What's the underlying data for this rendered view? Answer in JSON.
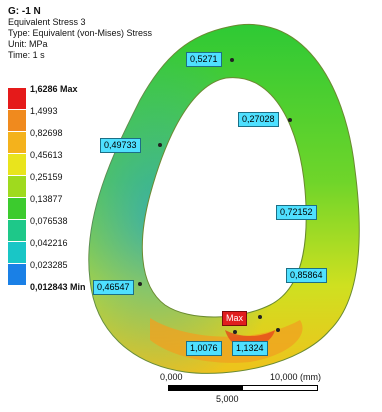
{
  "header": {
    "title": "G: -1 N",
    "result": "Equivalent Stress 3",
    "type": "Type: Equivalent (von-Mises) Stress",
    "unit": "Unit: MPa",
    "time": "Time: 1 s"
  },
  "legend": [
    {
      "label": "1,6286 Max",
      "color": "#e51a1a",
      "bold": true
    },
    {
      "label": "1,4993",
      "color": "#f08a1e"
    },
    {
      "label": "0,82698",
      "color": "#f4b21c"
    },
    {
      "label": "0,45613",
      "color": "#e9e41c"
    },
    {
      "label": "0,25159",
      "color": "#9fda1e"
    },
    {
      "label": "0,13877",
      "color": "#3ccb2e"
    },
    {
      "label": "0,076538",
      "color": "#1ec889"
    },
    {
      "label": "0,042216",
      "color": "#19c6c6"
    },
    {
      "label": "0,023285",
      "color": "#1a80e6"
    },
    {
      "label": "0,012843 Min",
      "color": "#1a2ad6",
      "bold": true
    }
  ],
  "probes": [
    {
      "label": "0,5271"
    },
    {
      "label": "0,27028"
    },
    {
      "label": "0,49733"
    },
    {
      "label": "0,72152"
    },
    {
      "label": "0,85864"
    },
    {
      "label": "0,46547"
    },
    {
      "label": "Max",
      "max": true
    },
    {
      "label": "1,0076"
    },
    {
      "label": "1,1324"
    }
  ],
  "scale": {
    "left": "0,000",
    "right": "10,000 (mm)",
    "mid": "5,000"
  }
}
